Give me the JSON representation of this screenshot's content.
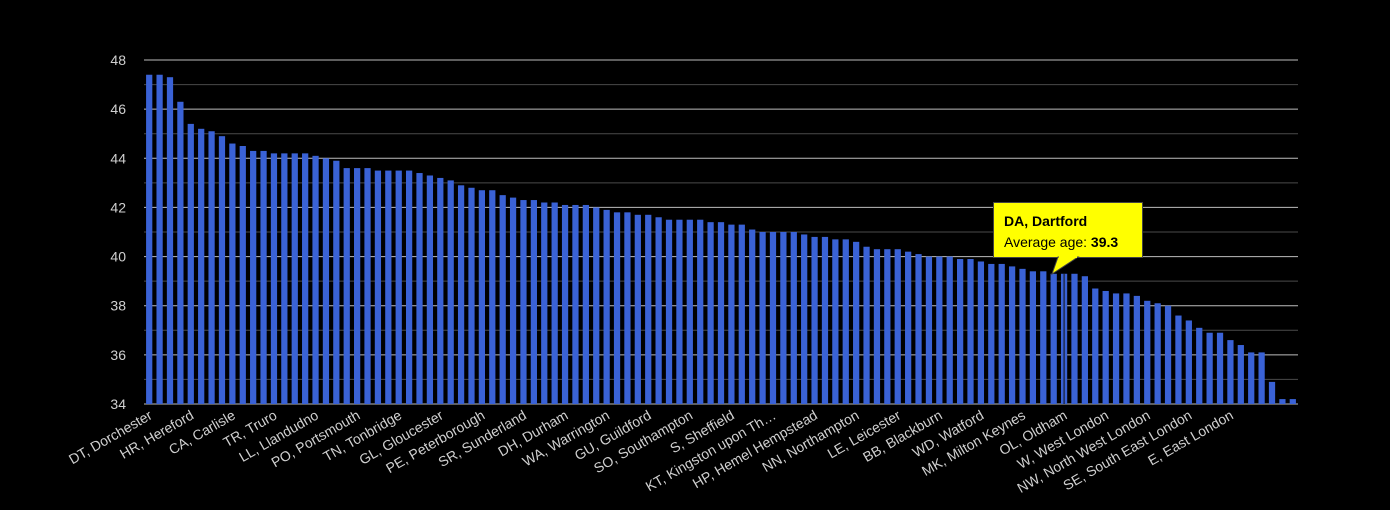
{
  "chart_data": {
    "type": "bar",
    "ylim": [
      34,
      48
    ],
    "yticks": [
      34,
      36,
      38,
      40,
      42,
      44,
      46,
      48
    ],
    "grid": true,
    "bar_color": "#3a62d6",
    "values": [
      47.4,
      47.4,
      47.3,
      46.3,
      45.4,
      45.2,
      45.1,
      44.9,
      44.6,
      44.5,
      44.3,
      44.3,
      44.2,
      44.2,
      44.2,
      44.2,
      44.1,
      44.0,
      43.9,
      43.6,
      43.6,
      43.6,
      43.5,
      43.5,
      43.5,
      43.5,
      43.4,
      43.3,
      43.2,
      43.1,
      42.9,
      42.8,
      42.7,
      42.7,
      42.5,
      42.4,
      42.3,
      42.3,
      42.2,
      42.2,
      42.1,
      42.1,
      42.1,
      42.0,
      41.9,
      41.8,
      41.8,
      41.7,
      41.7,
      41.6,
      41.5,
      41.5,
      41.5,
      41.5,
      41.4,
      41.4,
      41.3,
      41.3,
      41.1,
      41.0,
      41.0,
      41.0,
      41.0,
      40.9,
      40.8,
      40.8,
      40.7,
      40.7,
      40.6,
      40.4,
      40.3,
      40.3,
      40.3,
      40.2,
      40.1,
      40.0,
      40.0,
      40.0,
      39.9,
      39.9,
      39.8,
      39.7,
      39.7,
      39.6,
      39.5,
      39.4,
      39.4,
      39.3,
      39.3,
      39.3,
      39.2,
      38.7,
      38.6,
      38.5,
      38.5,
      38.4,
      38.2,
      38.1,
      38.0,
      37.6,
      37.4,
      37.1,
      36.9,
      36.9,
      36.6,
      36.4,
      36.1,
      36.1,
      34.9,
      34.2,
      34.2
    ],
    "x_labels": [
      {
        "index": 0,
        "text": "DT, Dorchester"
      },
      {
        "index": 4,
        "text": "HR, Hereford"
      },
      {
        "index": 8,
        "text": "CA, Carlisle"
      },
      {
        "index": 12,
        "text": "TR, Truro"
      },
      {
        "index": 16,
        "text": "LL, Llandudno"
      },
      {
        "index": 20,
        "text": "PO, Portsmouth"
      },
      {
        "index": 24,
        "text": "TN, Tonbridge"
      },
      {
        "index": 28,
        "text": "GL, Gloucester"
      },
      {
        "index": 32,
        "text": "PE, Peterborough"
      },
      {
        "index": 36,
        "text": "SR, Sunderland"
      },
      {
        "index": 40,
        "text": "DH, Durham"
      },
      {
        "index": 44,
        "text": "WA, Warrington"
      },
      {
        "index": 48,
        "text": "GU, Guildford"
      },
      {
        "index": 52,
        "text": "SO, Southampton"
      },
      {
        "index": 56,
        "text": "S, Sheffield"
      },
      {
        "index": 60,
        "text": "KT, Kingston upon Th…"
      },
      {
        "index": 64,
        "text": "HP, Hemel Hempstead"
      },
      {
        "index": 68,
        "text": "NN, Northampton"
      },
      {
        "index": 72,
        "text": "LE, Leicester"
      },
      {
        "index": 76,
        "text": "BB, Blackburn"
      },
      {
        "index": 80,
        "text": "WD, Watford"
      },
      {
        "index": 84,
        "text": "MK, Milton Keynes"
      },
      {
        "index": 88,
        "text": "OL, Oldham"
      },
      {
        "index": 92,
        "text": "W, West London"
      },
      {
        "index": 96,
        "text": "NW, North West London"
      },
      {
        "index": 100,
        "text": "SE, South East London"
      },
      {
        "index": 104,
        "text": "E, East London"
      }
    ],
    "highlight_index": 88,
    "tooltip": {
      "title": "DA, Dartford",
      "label": "Average age: ",
      "value": "39.3",
      "background": "#ffff00"
    }
  }
}
